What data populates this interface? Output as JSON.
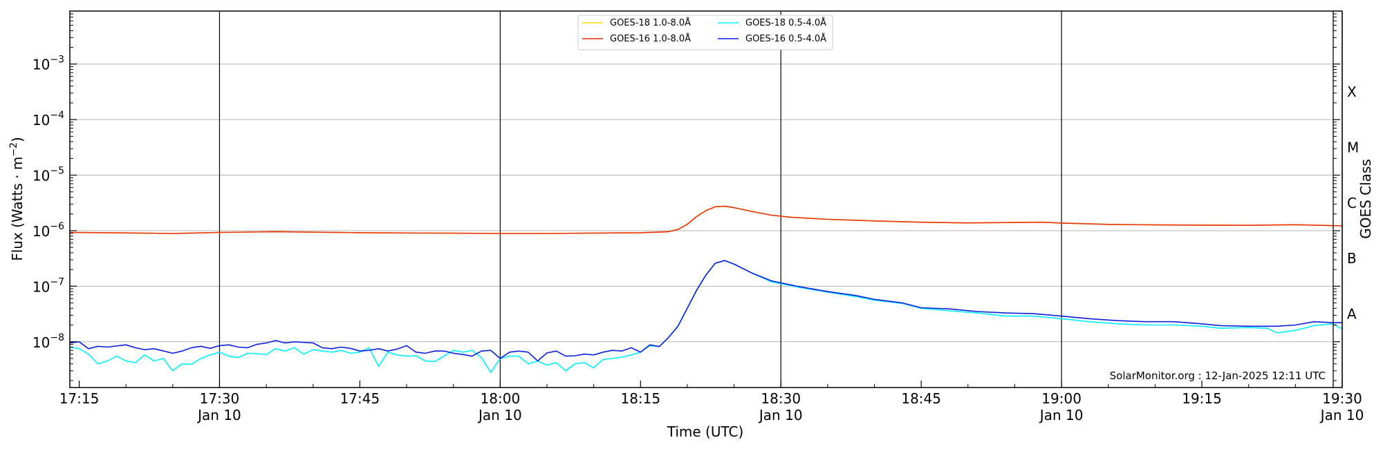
{
  "chart_data": {
    "type": "line",
    "xlabel": "Time (UTC)",
    "ylabel_main": "Flux (Watts · m",
    "ylabel_sup": "−2",
    "ylabel_close": ")",
    "ylabel_right": "GOES Class",
    "credit": "SolarMonitor.org : 12-Jan-2025 12:11 UTC",
    "scale": "log",
    "ylim": [
      1.5e-09,
      0.009
    ],
    "xlim": [
      "17:14",
      "19:30"
    ],
    "y_ticks": [
      {
        "value": 1e-08,
        "base": "10",
        "exp": "−8"
      },
      {
        "value": 1e-07,
        "base": "10",
        "exp": "−7"
      },
      {
        "value": 1e-06,
        "base": "10",
        "exp": "−6"
      },
      {
        "value": 1e-05,
        "base": "10",
        "exp": "−5"
      },
      {
        "value": 0.0001,
        "base": "10",
        "exp": "−4"
      },
      {
        "value": 0.001,
        "base": "10",
        "exp": "−3"
      }
    ],
    "x_ticks": [
      {
        "time": "17:15",
        "label": "17:15",
        "sublabel": ""
      },
      {
        "time": "17:30",
        "label": "17:30",
        "sublabel": "Jan 10"
      },
      {
        "time": "17:45",
        "label": "17:45",
        "sublabel": ""
      },
      {
        "time": "18:00",
        "label": "18:00",
        "sublabel": "Jan 10"
      },
      {
        "time": "18:15",
        "label": "18:15",
        "sublabel": ""
      },
      {
        "time": "18:30",
        "label": "18:30",
        "sublabel": "Jan 10"
      },
      {
        "time": "18:45",
        "label": "18:45",
        "sublabel": ""
      },
      {
        "time": "19:00",
        "label": "19:00",
        "sublabel": "Jan 10"
      },
      {
        "time": "19:15",
        "label": "19:15",
        "sublabel": ""
      },
      {
        "time": "19:30",
        "label": "19:30",
        "sublabel": "Jan 10"
      }
    ],
    "vertical_lines": [
      "17:30",
      "18:00",
      "18:30",
      "19:00",
      "19:30"
    ],
    "goes_classes": [
      {
        "label": "A",
        "value": 3.16e-08
      },
      {
        "label": "B",
        "value": 3.16e-07
      },
      {
        "label": "C",
        "value": 3.16e-06
      },
      {
        "label": "M",
        "value": 3.16e-05
      },
      {
        "label": "X",
        "value": 0.000316
      }
    ],
    "grid": true,
    "legend_position": "top-center",
    "series": [
      {
        "name": "GOES-18 1.0-8.0Å",
        "color": "#ffd700",
        "points": [
          [
            "17:14",
            9.3e-07
          ],
          [
            "17:20",
            9.1e-07
          ],
          [
            "17:25",
            8.9e-07
          ],
          [
            "17:30",
            9.3e-07
          ],
          [
            "17:36",
            9.6e-07
          ],
          [
            "17:45",
            9.2e-07
          ],
          [
            "17:55",
            9e-07
          ],
          [
            "18:00",
            8.9e-07
          ],
          [
            "18:05",
            8.9e-07
          ],
          [
            "18:15",
            9.2e-07
          ],
          [
            "18:18",
            9.6e-07
          ],
          [
            "18:19",
            1.05e-06
          ],
          [
            "18:20",
            1.3e-06
          ],
          [
            "18:21",
            1.8e-06
          ],
          [
            "18:22",
            2.3e-06
          ],
          [
            "18:23",
            2.7e-06
          ],
          [
            "18:24",
            2.75e-06
          ],
          [
            "18:25",
            2.6e-06
          ],
          [
            "18:27",
            2.2e-06
          ],
          [
            "18:29",
            1.9e-06
          ],
          [
            "18:31",
            1.75e-06
          ],
          [
            "18:35",
            1.6e-06
          ],
          [
            "18:40",
            1.5e-06
          ],
          [
            "18:45",
            1.42e-06
          ],
          [
            "18:50",
            1.38e-06
          ],
          [
            "18:58",
            1.42e-06
          ],
          [
            "19:00",
            1.37e-06
          ],
          [
            "19:05",
            1.3e-06
          ],
          [
            "19:10",
            1.27e-06
          ],
          [
            "19:15",
            1.26e-06
          ],
          [
            "19:20",
            1.25e-06
          ],
          [
            "19:25",
            1.28e-06
          ],
          [
            "19:30",
            1.22e-06
          ]
        ]
      },
      {
        "name": "GOES-16 1.0-8.0Å",
        "color": "#e8300a",
        "points": [
          [
            "17:14",
            9.3e-07
          ],
          [
            "17:20",
            9.1e-07
          ],
          [
            "17:25",
            8.9e-07
          ],
          [
            "17:30",
            9.3e-07
          ],
          [
            "17:36",
            9.6e-07
          ],
          [
            "17:45",
            9.2e-07
          ],
          [
            "17:55",
            9e-07
          ],
          [
            "18:00",
            8.9e-07
          ],
          [
            "18:05",
            8.9e-07
          ],
          [
            "18:15",
            9.2e-07
          ],
          [
            "18:18",
            9.6e-07
          ],
          [
            "18:19",
            1.05e-06
          ],
          [
            "18:20",
            1.3e-06
          ],
          [
            "18:21",
            1.8e-06
          ],
          [
            "18:22",
            2.3e-06
          ],
          [
            "18:23",
            2.7e-06
          ],
          [
            "18:24",
            2.75e-06
          ],
          [
            "18:25",
            2.6e-06
          ],
          [
            "18:27",
            2.2e-06
          ],
          [
            "18:29",
            1.9e-06
          ],
          [
            "18:31",
            1.75e-06
          ],
          [
            "18:35",
            1.6e-06
          ],
          [
            "18:40",
            1.5e-06
          ],
          [
            "18:45",
            1.42e-06
          ],
          [
            "18:50",
            1.38e-06
          ],
          [
            "18:58",
            1.42e-06
          ],
          [
            "19:00",
            1.37e-06
          ],
          [
            "19:05",
            1.3e-06
          ],
          [
            "19:10",
            1.27e-06
          ],
          [
            "19:15",
            1.26e-06
          ],
          [
            "19:20",
            1.25e-06
          ],
          [
            "19:25",
            1.28e-06
          ],
          [
            "19:30",
            1.22e-06
          ]
        ]
      },
      {
        "name": "GOES-18 0.5-4.0Å",
        "color": "#00f0ff",
        "points": [
          [
            "17:14",
            8e-09
          ],
          [
            "17:15",
            7.5e-09
          ],
          [
            "17:16",
            6e-09
          ],
          [
            "17:17",
            4e-09
          ],
          [
            "17:18",
            4.5e-09
          ],
          [
            "17:19",
            5.5e-09
          ],
          [
            "17:20",
            4.5e-09
          ],
          [
            "17:21",
            4.2e-09
          ],
          [
            "17:22",
            5.8e-09
          ],
          [
            "17:23",
            4.5e-09
          ],
          [
            "17:24",
            5e-09
          ],
          [
            "17:25",
            3e-09
          ],
          [
            "17:26",
            4e-09
          ],
          [
            "17:27",
            3.9e-09
          ],
          [
            "17:28",
            5e-09
          ],
          [
            "17:29",
            5.8e-09
          ],
          [
            "17:30",
            6.5e-09
          ],
          [
            "17:31",
            5.5e-09
          ],
          [
            "17:32",
            5.2e-09
          ],
          [
            "17:33",
            6.2e-09
          ],
          [
            "17:34",
            6.1e-09
          ],
          [
            "17:35",
            5.9e-09
          ],
          [
            "17:36",
            7.5e-09
          ],
          [
            "17:37",
            6.8e-09
          ],
          [
            "17:38",
            7.8e-09
          ],
          [
            "17:39",
            6e-09
          ],
          [
            "17:40",
            7.2e-09
          ],
          [
            "17:41",
            6.8e-09
          ],
          [
            "17:42",
            6.5e-09
          ],
          [
            "17:43",
            7e-09
          ],
          [
            "17:44",
            6.2e-09
          ],
          [
            "17:45",
            6.5e-09
          ],
          [
            "17:46",
            7.8e-09
          ],
          [
            "17:47",
            3.6e-09
          ],
          [
            "17:48",
            6.5e-09
          ],
          [
            "17:49",
            5.8e-09
          ],
          [
            "17:50",
            5.5e-09
          ],
          [
            "17:51",
            5.6e-09
          ],
          [
            "17:52",
            4.5e-09
          ],
          [
            "17:53",
            4.4e-09
          ],
          [
            "17:54",
            5.5e-09
          ],
          [
            "17:55",
            7e-09
          ],
          [
            "17:56",
            6.5e-09
          ],
          [
            "17:57",
            7e-09
          ],
          [
            "17:58",
            5.2e-09
          ],
          [
            "17:59",
            2.8e-09
          ],
          [
            "18:00",
            5e-09
          ],
          [
            "18:01",
            5.5e-09
          ],
          [
            "18:02",
            5.5e-09
          ],
          [
            "18:03",
            4e-09
          ],
          [
            "18:04",
            4.5e-09
          ],
          [
            "18:05",
            3.8e-09
          ],
          [
            "18:06",
            4.2e-09
          ],
          [
            "18:07",
            3e-09
          ],
          [
            "18:08",
            4e-09
          ],
          [
            "18:09",
            4.2e-09
          ],
          [
            "18:10",
            3.4e-09
          ],
          [
            "18:11",
            4.8e-09
          ],
          [
            "18:12",
            5e-09
          ],
          [
            "18:13",
            5.3e-09
          ],
          [
            "18:14",
            5.8e-09
          ],
          [
            "18:15",
            6.5e-09
          ],
          [
            "18:16",
            8.5e-09
          ],
          [
            "18:17",
            8.2e-09
          ],
          [
            "18:18",
            1.2e-08
          ],
          [
            "18:19",
            1.9e-08
          ],
          [
            "18:20",
            4e-08
          ],
          [
            "18:21",
            8.5e-08
          ],
          [
            "18:22",
            1.6e-07
          ],
          [
            "18:23",
            2.6e-07
          ],
          [
            "18:24",
            2.9e-07
          ],
          [
            "18:25",
            2.5e-07
          ],
          [
            "18:27",
            1.7e-07
          ],
          [
            "18:29",
            1.2e-07
          ],
          [
            "18:32",
            9.5e-08
          ],
          [
            "18:35",
            7.8e-08
          ],
          [
            "18:38",
            6.5e-08
          ],
          [
            "18:40",
            5.6e-08
          ],
          [
            "18:43",
            4.9e-08
          ],
          [
            "18:45",
            4e-08
          ],
          [
            "18:48",
            3.6e-08
          ],
          [
            "18:51",
            3.3e-08
          ],
          [
            "18:54",
            2.9e-08
          ],
          [
            "18:57",
            2.9e-08
          ],
          [
            "19:00",
            2.6e-08
          ],
          [
            "19:03",
            2.3e-08
          ],
          [
            "19:06",
            2.1e-08
          ],
          [
            "19:09",
            2e-08
          ],
          [
            "19:12",
            2e-08
          ],
          [
            "19:15",
            1.9e-08
          ],
          [
            "19:17",
            1.75e-08
          ],
          [
            "19:20",
            1.8e-08
          ],
          [
            "19:22",
            1.75e-08
          ],
          [
            "19:23",
            1.45e-08
          ],
          [
            "19:25",
            1.6e-08
          ],
          [
            "19:27",
            1.95e-08
          ],
          [
            "19:29",
            2.1e-08
          ],
          [
            "19:30",
            1.7e-08
          ]
        ]
      },
      {
        "name": "GOES-16 0.5-4.0Å",
        "color": "#0a1ee0",
        "points": [
          [
            "17:14",
            9.5e-09
          ],
          [
            "17:15",
            1e-08
          ],
          [
            "17:16",
            7.5e-09
          ],
          [
            "17:17",
            8.3e-09
          ],
          [
            "17:18",
            8e-09
          ],
          [
            "17:20",
            8.8e-09
          ],
          [
            "17:21",
            7.8e-09
          ],
          [
            "17:22",
            7.2e-09
          ],
          [
            "17:23",
            7.5e-09
          ],
          [
            "17:25",
            6.2e-09
          ],
          [
            "17:26",
            6.8e-09
          ],
          [
            "17:27",
            7.8e-09
          ],
          [
            "17:28",
            8.3e-09
          ],
          [
            "17:29",
            7.6e-09
          ],
          [
            "17:30",
            8.5e-09
          ],
          [
            "17:31",
            8.8e-09
          ],
          [
            "17:32",
            8e-09
          ],
          [
            "17:33",
            7.8e-09
          ],
          [
            "17:34",
            9e-09
          ],
          [
            "17:35",
            9.5e-09
          ],
          [
            "17:36",
            1.05e-08
          ],
          [
            "17:37",
            9.5e-09
          ],
          [
            "17:38",
            1e-08
          ],
          [
            "17:40",
            9.5e-09
          ],
          [
            "17:41",
            7.8e-09
          ],
          [
            "17:42",
            7.5e-09
          ],
          [
            "17:43",
            8e-09
          ],
          [
            "17:44",
            7.6e-09
          ],
          [
            "17:45",
            6.8e-09
          ],
          [
            "17:46",
            7e-09
          ],
          [
            "17:47",
            7.5e-09
          ],
          [
            "17:48",
            6.8e-09
          ],
          [
            "17:49",
            7.4e-09
          ],
          [
            "17:50",
            8.5e-09
          ],
          [
            "17:51",
            6.5e-09
          ],
          [
            "17:52",
            6.2e-09
          ],
          [
            "17:53",
            6.8e-09
          ],
          [
            "17:54",
            6.8e-09
          ],
          [
            "17:55",
            6.2e-09
          ],
          [
            "17:56",
            5.9e-09
          ],
          [
            "17:57",
            5.5e-09
          ],
          [
            "17:58",
            6.8e-09
          ],
          [
            "17:59",
            7e-09
          ],
          [
            "18:00",
            5e-09
          ],
          [
            "18:01",
            6.5e-09
          ],
          [
            "18:02",
            6.8e-09
          ],
          [
            "18:03",
            6.5e-09
          ],
          [
            "18:04",
            4.5e-09
          ],
          [
            "18:05",
            6.3e-09
          ],
          [
            "18:06",
            6.8e-09
          ],
          [
            "18:07",
            5.5e-09
          ],
          [
            "18:08",
            5.6e-09
          ],
          [
            "18:09",
            6e-09
          ],
          [
            "18:10",
            5.8e-09
          ],
          [
            "18:11",
            6.5e-09
          ],
          [
            "18:12",
            7e-09
          ],
          [
            "18:13",
            6.8e-09
          ],
          [
            "18:14",
            7.8e-09
          ],
          [
            "18:15",
            6.5e-09
          ],
          [
            "18:16",
            8.8e-09
          ],
          [
            "18:17",
            8.2e-09
          ],
          [
            "18:18",
            1.2e-08
          ],
          [
            "18:19",
            1.9e-08
          ],
          [
            "18:20",
            4e-08
          ],
          [
            "18:21",
            8.5e-08
          ],
          [
            "18:22",
            1.6e-07
          ],
          [
            "18:23",
            2.6e-07
          ],
          [
            "18:24",
            2.9e-07
          ],
          [
            "18:25",
            2.5e-07
          ],
          [
            "18:27",
            1.7e-07
          ],
          [
            "18:29",
            1.25e-07
          ],
          [
            "18:32",
            9.8e-08
          ],
          [
            "18:35",
            8e-08
          ],
          [
            "18:38",
            6.8e-08
          ],
          [
            "18:40",
            5.8e-08
          ],
          [
            "18:43",
            5e-08
          ],
          [
            "18:45",
            4.1e-08
          ],
          [
            "18:48",
            3.9e-08
          ],
          [
            "18:51",
            3.5e-08
          ],
          [
            "18:54",
            3.3e-08
          ],
          [
            "18:57",
            3.2e-08
          ],
          [
            "19:00",
            2.9e-08
          ],
          [
            "19:03",
            2.6e-08
          ],
          [
            "19:06",
            2.4e-08
          ],
          [
            "19:09",
            2.3e-08
          ],
          [
            "19:12",
            2.3e-08
          ],
          [
            "19:15",
            2.1e-08
          ],
          [
            "19:17",
            1.95e-08
          ],
          [
            "19:20",
            1.9e-08
          ],
          [
            "19:23",
            1.9e-08
          ],
          [
            "19:25",
            2e-08
          ],
          [
            "19:27",
            2.3e-08
          ],
          [
            "19:29",
            2.2e-08
          ],
          [
            "19:30",
            2.2e-08
          ]
        ]
      }
    ]
  }
}
